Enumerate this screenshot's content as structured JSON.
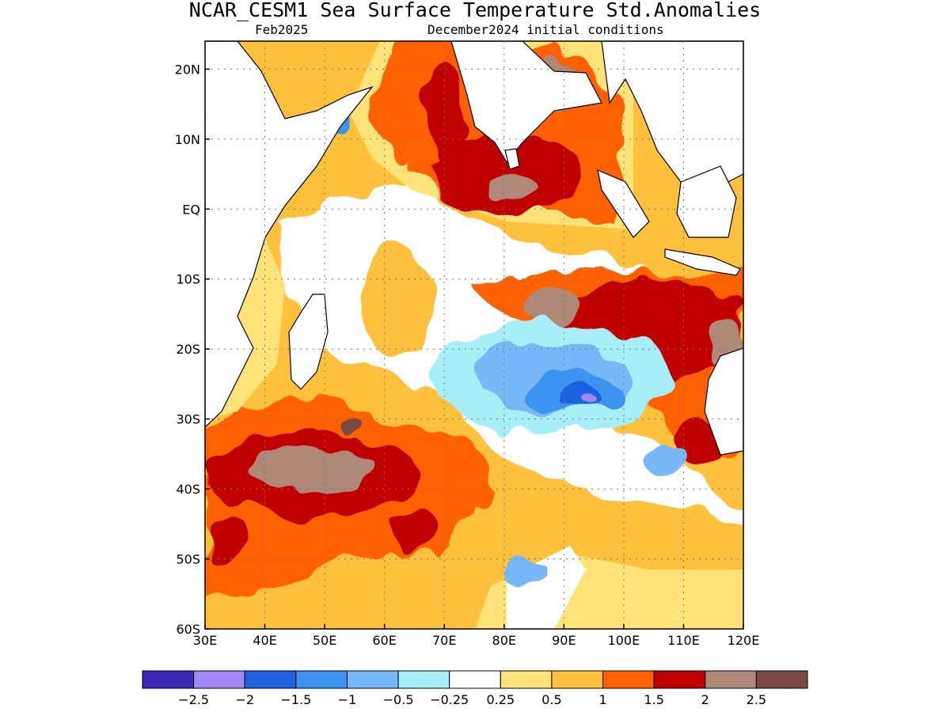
{
  "header": {
    "title": "NCAR_CESM1 Sea Surface Temperature Std.Anomalies",
    "valid": "Feb2025",
    "init": "December2024 initial conditions"
  },
  "map": {
    "lon_range": [
      30,
      120
    ],
    "lat_range": [
      -60,
      24
    ],
    "lon_ticks": [
      {
        "value": 30,
        "label": "30E"
      },
      {
        "value": 40,
        "label": "40E"
      },
      {
        "value": 50,
        "label": "50E"
      },
      {
        "value": 60,
        "label": "60E"
      },
      {
        "value": 70,
        "label": "70E"
      },
      {
        "value": 80,
        "label": "80E"
      },
      {
        "value": 90,
        "label": "90E"
      },
      {
        "value": 100,
        "label": "100E"
      },
      {
        "value": 110,
        "label": "110E"
      },
      {
        "value": 120,
        "label": "120E"
      }
    ],
    "lat_ticks": [
      {
        "value": 20,
        "label": "20N"
      },
      {
        "value": 10,
        "label": "10N"
      },
      {
        "value": 0,
        "label": "EQ"
      },
      {
        "value": -10,
        "label": "10S"
      },
      {
        "value": -20,
        "label": "20S"
      },
      {
        "value": -30,
        "label": "30S"
      },
      {
        "value": -40,
        "label": "40S"
      },
      {
        "value": -50,
        "label": "50S"
      },
      {
        "value": -60,
        "label": "60S"
      }
    ],
    "grid": true,
    "anomaly_regions": [
      {
        "level": 0.5,
        "color": "#FFC03C",
        "lon": 62,
        "lat": -13,
        "rlon": 6,
        "rlat": 8
      },
      {
        "level": 1,
        "color": "#FF6000",
        "lon": 63,
        "lat": 15,
        "rlon": 5,
        "rlat": 8
      },
      {
        "level": 1.5,
        "color": "#C00000",
        "lon": 70,
        "lat": 14,
        "rlon": 3,
        "rlat": 7
      },
      {
        "level": 1.5,
        "color": "#C00000",
        "lon": 80,
        "lat": 5,
        "rlon": 12,
        "rlat": 6
      },
      {
        "level": 2,
        "color": "#B08878",
        "lon": 82,
        "lat": 3.5,
        "rlon": 5,
        "rlat": 2
      },
      {
        "level": 2,
        "color": "#B08878",
        "lon": 88,
        "lat": 18,
        "rlon": 4,
        "rlat": 4
      },
      {
        "level": 1.5,
        "color": "#C00000",
        "lon": 104,
        "lat": -17,
        "rlon": 16,
        "rlat": 7
      },
      {
        "level": 2,
        "color": "#B08878",
        "lon": 88,
        "lat": -14,
        "rlon": 4,
        "rlat": 2.5
      },
      {
        "level": 2,
        "color": "#B08878",
        "lon": 117,
        "lat": -19,
        "rlon": 3,
        "rlat": 3
      },
      {
        "level": 1.5,
        "color": "#C00000",
        "lon": 48,
        "lat": -38,
        "rlon": 18,
        "rlat": 6
      },
      {
        "level": 2,
        "color": "#B08878",
        "lon": 48,
        "lat": -37,
        "rlon": 11,
        "rlat": 3
      },
      {
        "level": 2.5,
        "color": "#7A4A40",
        "lon": 54,
        "lat": -31,
        "rlon": 2,
        "rlat": 1
      },
      {
        "level": 1.5,
        "color": "#C00000",
        "lon": 33,
        "lat": -47,
        "rlon": 3,
        "rlat": 4
      },
      {
        "level": 1.5,
        "color": "#C00000",
        "lon": 65,
        "lat": -46,
        "rlon": 4,
        "rlat": 3
      },
      {
        "level": 1.5,
        "color": "#C00000",
        "lon": 112,
        "lat": -34,
        "rlon": 4,
        "rlat": 3
      },
      {
        "level": 0.5,
        "color": "#FFC03C",
        "lon": 115,
        "lat": 8,
        "rlon": 5,
        "rlat": 8
      },
      {
        "level": -0.25,
        "color": "#A8EEF8",
        "lon": 88,
        "lat": -24,
        "rlon": 20,
        "rlat": 8
      },
      {
        "level": -0.5,
        "color": "#78B8F8",
        "lon": 88,
        "lat": -24,
        "rlon": 14,
        "rlat": 5
      },
      {
        "level": -1,
        "color": "#3C94F0",
        "lon": 92,
        "lat": -26,
        "rlon": 8,
        "rlat": 3
      },
      {
        "level": -1.5,
        "color": "#1E62E0",
        "lon": 93,
        "lat": -27,
        "rlon": 4,
        "rlat": 2
      },
      {
        "level": -2,
        "color": "#A088F8",
        "lon": 94,
        "lat": -27.5,
        "rlon": 2,
        "rlat": 1
      },
      {
        "level": -0.5,
        "color": "#78B8F8",
        "lon": 107,
        "lat": -36,
        "rlon": 3,
        "rlat": 2
      },
      {
        "level": -0.5,
        "color": "#78B8F8",
        "lon": 83,
        "lat": -52,
        "rlon": 3,
        "rlat": 2.5
      },
      {
        "level": -1,
        "color": "#3C94F0",
        "lon": 52,
        "lat": 13,
        "rlon": 1.5,
        "rlat": 2
      }
    ]
  },
  "colorbar": {
    "colors": [
      "#3C28B4",
      "#A088F8",
      "#1E62E0",
      "#3C94F0",
      "#78B8F8",
      "#A8EEF8",
      "#FFFFFF",
      "#FFE278",
      "#FFC03C",
      "#FF6000",
      "#C00000",
      "#B08878",
      "#7A4A40"
    ],
    "labels": [
      "−2.5",
      "−2",
      "−1.5",
      "−1",
      "−0.5",
      "−0.25",
      "0.25",
      "0.5",
      "1",
      "1.5",
      "2",
      "2.5"
    ]
  }
}
